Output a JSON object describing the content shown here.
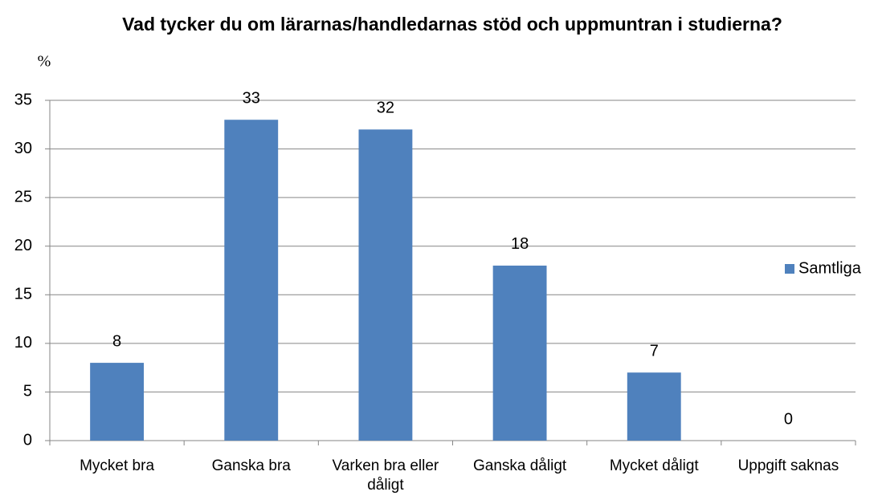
{
  "chart_data": {
    "type": "bar",
    "title": "Vad tycker du om lärarnas/handledarnas stöd och uppmuntran i studierna?",
    "y_label": "%",
    "categories": [
      "Mycket bra",
      "Ganska bra",
      "Varken bra eller dåligt",
      "Ganska dåligt",
      "Mycket dåligt",
      "Uppgift saknas"
    ],
    "series": [
      {
        "name": "Samtliga",
        "color": "#4f81bd",
        "values": [
          8,
          33,
          32,
          18,
          7,
          0
        ]
      }
    ],
    "ylim": [
      0,
      35
    ],
    "yticks": [
      0,
      5,
      10,
      15,
      20,
      25,
      30,
      35
    ],
    "grid": true,
    "legend": "right"
  }
}
